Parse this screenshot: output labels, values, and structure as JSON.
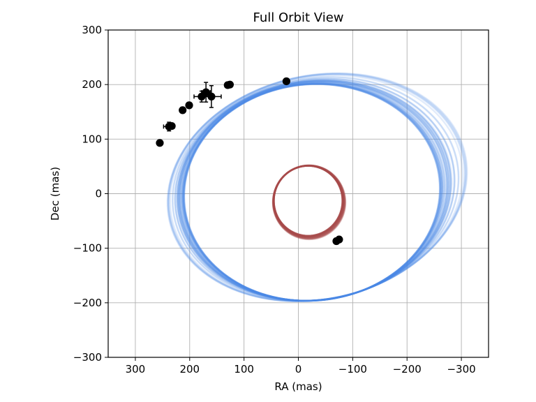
{
  "chart_data": {
    "type": "scatter",
    "title": "Full Orbit View",
    "xlabel": "RA (mas)",
    "ylabel": "Dec (mas)",
    "xlim": [
      350,
      -350
    ],
    "ylim": [
      -300,
      300
    ],
    "x_ticks": [
      300,
      200,
      100,
      0,
      -100,
      -200,
      -300
    ],
    "y_ticks": [
      -300,
      -200,
      -100,
      0,
      100,
      200,
      300
    ],
    "x_tick_labels": [
      "300",
      "200",
      "100",
      "0",
      "−100",
      "−200",
      "−300"
    ],
    "y_tick_labels": [
      "−300",
      "−200",
      "−100",
      "0",
      "100",
      "200",
      "300"
    ],
    "grid": true,
    "colors": {
      "outer_orbits": "#4a86e8",
      "inner_orbits": "#a94a4a",
      "points": "#000000"
    },
    "orbit_families": [
      {
        "color": "#4a86e8",
        "center_ra": [
          -25,
          -35
        ],
        "center_dec": [
          2,
          12
        ],
        "semi_axis_ra": [
          235,
          280
        ],
        "semi_axis_dec": [
          198,
          205
        ],
        "rotation_deg": [
          -6,
          -13
        ]
      },
      {
        "color": "#a94a4a",
        "center_ra": [
          -18,
          -20
        ],
        "center_dec": [
          -13,
          -16
        ],
        "semi_axis_ra": [
          63,
          67
        ],
        "semi_axis_dec": [
          64,
          68
        ],
        "rotation_deg": [
          0,
          0
        ]
      }
    ],
    "series": [
      {
        "marker": "circle",
        "points": [
          {
            "ra": 255,
            "dec": 93
          },
          {
            "ra": 238,
            "dec": 123,
            "ra_err": 10,
            "dec_err": 8
          },
          {
            "ra": 233,
            "dec": 124
          },
          {
            "ra": 213,
            "dec": 153
          },
          {
            "ra": 201,
            "dec": 162
          },
          {
            "ra": 178,
            "dec": 178,
            "ra_err": 14,
            "dec_err": 10
          },
          {
            "ra": 170,
            "dec": 186,
            "ra_err": 8,
            "dec_err": 18
          },
          {
            "ra": 160,
            "dec": 178,
            "ra_err": 18,
            "dec_err": 20
          },
          {
            "ra": 130,
            "dec": 199
          },
          {
            "ra": 126,
            "dec": 200
          },
          {
            "ra": 22,
            "dec": 206
          },
          {
            "ra": -70,
            "dec": -87
          },
          {
            "ra": -75,
            "dec": -84
          }
        ]
      }
    ]
  }
}
